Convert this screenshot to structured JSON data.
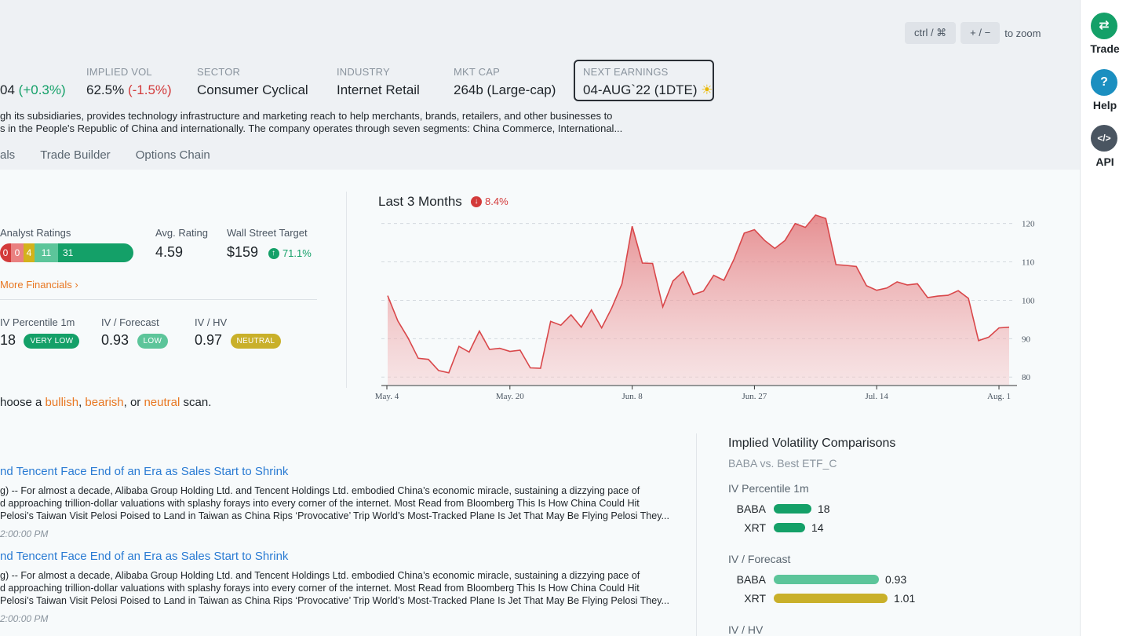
{
  "zoom": {
    "ctrl": "ctrl / ⌘",
    "plusminus": "+ / −",
    "text": "to zoom"
  },
  "stats": {
    "price_partial": "04",
    "price_change": "(+0.3%)",
    "implied_vol_label": "IMPLIED VOL",
    "implied_vol": "62.5%",
    "implied_vol_change": "(-1.5%)",
    "sector_label": "SECTOR",
    "sector": "Consumer Cyclical",
    "industry_label": "INDUSTRY",
    "industry": "Internet Retail",
    "mktcap_label": "MKT CAP",
    "mktcap": "264b (Large-cap)",
    "earnings_label": "NEXT EARNINGS",
    "earnings": "04-AUG`22 (1DTE)",
    "earnings_icon": "sun-icon"
  },
  "description": {
    "line1": "gh its subsidiaries, provides technology infrastructure and marketing reach to help merchants, brands, retailers, and other businesses to",
    "line2": "s in the People's Republic of China and internationally. The company operates through seven segments: China Commerce, International..."
  },
  "tabs": [
    "als",
    "Trade Builder",
    "Options Chain"
  ],
  "ratings": {
    "label": "Analyst Ratings",
    "segments": [
      {
        "value": "0",
        "color": "#d33a3a"
      },
      {
        "value": "0",
        "color": "#e98080"
      },
      {
        "value": "4",
        "color": "#d3b21c"
      },
      {
        "value": "11",
        "color": "#5cc59a"
      },
      {
        "value": "31",
        "color": "#14a068"
      }
    ],
    "avg_label": "Avg. Rating",
    "avg": "4.59",
    "target_label": "Wall Street Target",
    "target": "$159",
    "target_change": "71.1%",
    "more": "More Financials ›"
  },
  "iv_metrics": {
    "pct_label": "IV Percentile 1m",
    "pct": "18",
    "pct_badge": "VERY LOW",
    "fc_label": "IV / Forecast",
    "fc": "0.93",
    "fc_badge": "LOW",
    "hv_label": "IV / HV",
    "hv": "0.97",
    "hv_badge": "NEUTRAL"
  },
  "scan": {
    "pre": "hoose a ",
    "bullish": "bullish",
    "sep1": ", ",
    "bearish": "bearish",
    "sep2": ", or ",
    "neutral": "neutral",
    "post": " scan."
  },
  "chart_data": {
    "type": "area",
    "title": "Last 3 Months",
    "change": "8.4%",
    "x_ticks": [
      "May. 4",
      "May. 20",
      "Jun. 8",
      "Jun. 27",
      "Jul. 14",
      "Aug. 1"
    ],
    "y_ticks": [
      80,
      90,
      100,
      110,
      120
    ],
    "ylim": [
      78,
      123
    ],
    "grid": true,
    "values": [
      101.2,
      94.6,
      90.2,
      84.9,
      84.6,
      81.7,
      81.1,
      88.0,
      86.5,
      92.0,
      87.2,
      87.5,
      86.7,
      87.0,
      82.4,
      82.3,
      94.5,
      93.5,
      96.2,
      93.0,
      97.5,
      92.8,
      98.0,
      104.3,
      119.3,
      109.7,
      109.6,
      98.3,
      105.0,
      107.5,
      101.5,
      102.4,
      106.5,
      105.2,
      110.7,
      117.5,
      118.4,
      115.6,
      113.5,
      115.6,
      120.0,
      119.0,
      122.2,
      121.3,
      109.3,
      109.1,
      108.8,
      103.8,
      102.6,
      103.2,
      104.8,
      104.0,
      104.3,
      100.7,
      101.1,
      101.3,
      102.5,
      100.5,
      89.5,
      90.4,
      92.8,
      93.0
    ],
    "color": "#d9474a"
  },
  "news": [
    {
      "headline": "nd Tencent Face End of an Era as Sales Start to Shrink",
      "l1": "g) -- For almost a decade, Alibaba Group Holding Ltd. and Tencent Holdings Ltd. embodied China’s economic miracle, sustaining a dizzying pace of",
      "l2": "d approaching trillion-dollar valuations with splashy forays into every corner of the internet. Most Read from Bloomberg This Is How China Could Hit",
      "l3": "Pelosi’s Taiwan Visit Pelosi Poised to Land in Taiwan as China Rips ‘Provocative’ Trip World’s Most-Tracked Plane Is Jet That May Be Flying Pelosi They...",
      "time": "2:00:00 PM"
    },
    {
      "headline": "nd Tencent Face End of an Era as Sales Start to Shrink",
      "l1": "g) -- For almost a decade, Alibaba Group Holding Ltd. and Tencent Holdings Ltd. embodied China’s economic miracle, sustaining a dizzying pace of",
      "l2": "d approaching trillion-dollar valuations with splashy forays into every corner of the internet. Most Read from Bloomberg This Is How China Could Hit",
      "l3": "Pelosi’s Taiwan Visit Pelosi Poised to Land in Taiwan as China Rips ‘Provocative’ Trip World’s Most-Tracked Plane Is Jet That May Be Flying Pelosi They...",
      "time": "2:00:00 PM"
    }
  ],
  "iv_compare": {
    "title": "Implied Volatility Comparisons",
    "subtitle": "BABA vs. Best ETF_C",
    "sec1": "IV Percentile 1m",
    "baba1": {
      "ticker": "BABA",
      "value": "18",
      "frac": 0.18
    },
    "xrt1": {
      "ticker": "XRT",
      "value": "14",
      "frac": 0.14
    },
    "sec2": "IV / Forecast",
    "baba2": {
      "ticker": "BABA",
      "value": "0.93",
      "frac": 0.93
    },
    "xrt2": {
      "ticker": "XRT",
      "value": "1.01",
      "frac": 1.01
    },
    "sec3": "IV / HV"
  },
  "rail": {
    "trade": "Trade",
    "help": "Help",
    "api": "API"
  },
  "colors": {
    "green": "#14a068",
    "red": "#d33a3a",
    "teal": "#5cc59a",
    "olive": "#c9b02a",
    "orange": "#e87722",
    "blue": "#2a7bd3"
  }
}
